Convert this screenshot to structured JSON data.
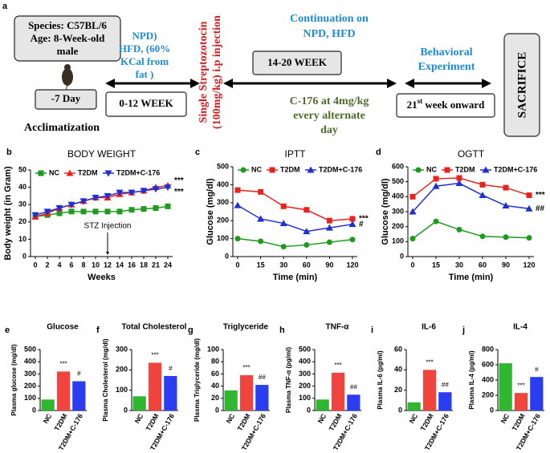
{
  "diagram": {
    "panel": "a",
    "box1": [
      "Species: C57BL/6",
      "Age: 8-Week-old",
      "male"
    ],
    "day": "-7 Day",
    "acclimatization": "Acclimatization",
    "diet": [
      "NPD)",
      "HFD, (60%",
      "KCal  from",
      "fat )"
    ],
    "week1": "0-12 WEEK",
    "stz": [
      "Single Streptozotocin",
      "(100mg/kg) i.p injection"
    ],
    "continuation": [
      "Continuation on",
      "NPD, HFD"
    ],
    "week2": "14-20 WEEK",
    "treatment": [
      "C-176 at 4mg/kg",
      "every alternate",
      "day"
    ],
    "behavior": [
      "Behavioral",
      "Experiment"
    ],
    "week3": [
      "21",
      "st",
      " week onward"
    ],
    "end": "SACRIFICE"
  },
  "chart_data": [
    {
      "type": "line",
      "panel": "b",
      "title": "BODY WEIGHT",
      "x_label": "Weeks",
      "y_label": "Body weight (in Gram)",
      "categories": [
        "0",
        "2",
        "4",
        "6",
        "8",
        "10",
        "12",
        "14",
        "16",
        "18",
        "21",
        "24"
      ],
      "series": [
        {
          "name": "NC",
          "color": "#1e9a1e",
          "marker": "square",
          "values": [
            23,
            24,
            25,
            26,
            26,
            26,
            26,
            26,
            27,
            27.5,
            28,
            29
          ]
        },
        {
          "name": "T2DM",
          "color": "#e8231f",
          "marker": "triangle",
          "values": [
            23,
            25,
            28,
            30,
            32,
            34,
            34,
            36,
            37,
            38,
            40,
            41
          ]
        },
        {
          "name": "T2DM+C-176",
          "color": "#1f2fd6",
          "marker": "triangle-down",
          "values": [
            24,
            26,
            28,
            30,
            32,
            34,
            35,
            37,
            37,
            38,
            39,
            40
          ]
        }
      ],
      "annotations": [
        "***",
        "***"
      ],
      "arrow_label": "STZ Injection",
      "ylim": [
        0,
        50
      ],
      "yticks": [
        0,
        10,
        20,
        30,
        40,
        50
      ]
    },
    {
      "type": "line",
      "panel": "c",
      "title": "IPTT",
      "x_label": "Time (min)",
      "y_label": "Glucose (mg/dl)",
      "categories": [
        "0",
        "15",
        "30",
        "60",
        "90",
        "120"
      ],
      "series": [
        {
          "name": "NC",
          "color": "#1e9a1e",
          "marker": "circle",
          "values": [
            100,
            85,
            55,
            65,
            80,
            95
          ]
        },
        {
          "name": "T2DM",
          "color": "#e8231f",
          "marker": "square",
          "values": [
            370,
            360,
            280,
            260,
            200,
            210
          ]
        },
        {
          "name": "T2DM+C-176",
          "color": "#1f2fd6",
          "marker": "triangle",
          "values": [
            285,
            210,
            185,
            140,
            160,
            180
          ]
        }
      ],
      "annotations": [
        "***",
        "#"
      ],
      "ylim": [
        0,
        500
      ],
      "yticks": [
        0,
        100,
        200,
        300,
        400,
        500
      ]
    },
    {
      "type": "line",
      "panel": "d",
      "title": "OGTT",
      "x_label": "Time (min)",
      "y_label": "Glucose (mg/dl)",
      "categories": [
        "0",
        "15",
        "30",
        "60",
        "90",
        "120"
      ],
      "series": [
        {
          "name": "NC",
          "color": "#1e9a1e",
          "marker": "circle",
          "values": [
            120,
            235,
            180,
            135,
            130,
            125
          ]
        },
        {
          "name": "T2DM",
          "color": "#e8231f",
          "marker": "square",
          "values": [
            400,
            520,
            525,
            480,
            460,
            410
          ]
        },
        {
          "name": "T2DM+C-176",
          "color": "#1f2fd6",
          "marker": "triangle",
          "values": [
            300,
            470,
            490,
            410,
            340,
            320
          ]
        }
      ],
      "annotations": [
        "***",
        "##"
      ],
      "ylim": [
        0,
        600
      ],
      "yticks": [
        0,
        100,
        200,
        300,
        400,
        500,
        600
      ]
    },
    {
      "type": "bar",
      "panel": "e",
      "title": "Glucose",
      "y_label": "Plasma glucose (mg/dl)",
      "categories": [
        "NC",
        "T2DM",
        "T2DM+C-176"
      ],
      "colors": [
        "#2fb82f",
        "#f0443c",
        "#2a3df0"
      ],
      "values": [
        90,
        320,
        240
      ],
      "significance": [
        null,
        "***",
        "#"
      ],
      "ylim": [
        0,
        500
      ],
      "yticks": [
        0,
        100,
        200,
        300,
        400,
        500
      ]
    },
    {
      "type": "bar",
      "panel": "f",
      "title": "Total Cholesterol",
      "y_label": "Plasma Cholesterol (mg/dl)",
      "categories": [
        "NC",
        "T2DM",
        "T2DM+C-176"
      ],
      "colors": [
        "#2fb82f",
        "#f0443c",
        "#2a3df0"
      ],
      "values": [
        70,
        235,
        170
      ],
      "significance": [
        null,
        "***",
        "#"
      ],
      "ylim": [
        0,
        300
      ],
      "yticks": [
        0,
        100,
        200,
        300
      ]
    },
    {
      "type": "bar",
      "panel": "g",
      "title": "Triglyceride",
      "y_label": "Plasma Triglyceride (mg/dl)",
      "categories": [
        "NC",
        "T2DM",
        "T2DM+C-176"
      ],
      "colors": [
        "#2fb82f",
        "#f0443c",
        "#2a3df0"
      ],
      "values": [
        33,
        58,
        42
      ],
      "significance": [
        null,
        "***",
        "##"
      ],
      "ylim": [
        0,
        100
      ],
      "yticks": [
        0,
        20,
        40,
        60,
        80,
        100
      ]
    },
    {
      "type": "bar",
      "panel": "h",
      "title": "TNF-α",
      "y_label": "Plasma TNF-α (pg/ml)",
      "categories": [
        "NC",
        "T2DM",
        "T2DM+C-176"
      ],
      "colors": [
        "#2fb82f",
        "#f0443c",
        "#2a3df0"
      ],
      "values": [
        90,
        310,
        130
      ],
      "significance": [
        null,
        "***",
        "##"
      ],
      "ylim": [
        0,
        500
      ],
      "yticks": [
        0,
        100,
        200,
        300,
        400,
        500
      ]
    },
    {
      "type": "bar",
      "panel": "i",
      "title": "IL-6",
      "y_label": "Plasma IL-6 (pg/ml)",
      "categories": [
        "NC",
        "T2DM",
        "T2DM+C-176"
      ],
      "colors": [
        "#2fb82f",
        "#f0443c",
        "#2a3df0"
      ],
      "values": [
        8,
        40,
        18
      ],
      "significance": [
        null,
        "***",
        "##"
      ],
      "ylim": [
        0,
        60
      ],
      "yticks": [
        0,
        20,
        40,
        60
      ]
    },
    {
      "type": "bar",
      "panel": "j",
      "title": "IL-4",
      "y_label": "Plasma IL-4 (pg/ml)",
      "categories": [
        "NC",
        "T2DM",
        "T2DM+C-176"
      ],
      "colors": [
        "#2fb82f",
        "#f0443c",
        "#2a3df0"
      ],
      "values": [
        620,
        230,
        440
      ],
      "significance": [
        null,
        "***",
        "#"
      ],
      "ylim": [
        0,
        800
      ],
      "yticks": [
        0,
        200,
        400,
        600,
        800
      ]
    }
  ]
}
